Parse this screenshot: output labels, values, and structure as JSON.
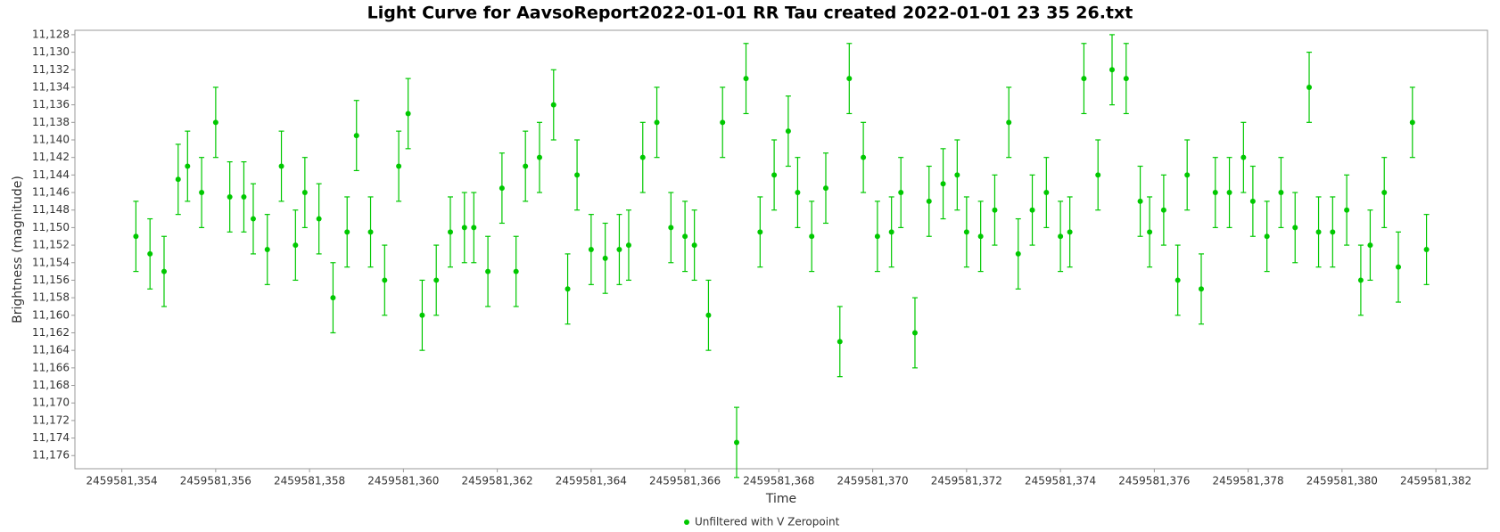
{
  "chart_data": {
    "type": "scatter",
    "title": "Light Curve for AavsoReport2022-01-01 RR Tau created 2022-01-01 23 35 26.txt",
    "x_label": "Time",
    "y_label": "Brightness (magnitude)",
    "y_inverted": true,
    "legend": "bottom",
    "xlim": [
      2459581.353,
      2459581.3831
    ],
    "ylim": [
      11.1275,
      11.1775
    ],
    "xticks": [
      {
        "value": 2459581.354,
        "label": "2459581,354"
      },
      {
        "value": 2459581.356,
        "label": "2459581,356"
      },
      {
        "value": 2459581.358,
        "label": "2459581,358"
      },
      {
        "value": 2459581.36,
        "label": "2459581,360"
      },
      {
        "value": 2459581.362,
        "label": "2459581,362"
      },
      {
        "value": 2459581.364,
        "label": "2459581,364"
      },
      {
        "value": 2459581.366,
        "label": "2459581,366"
      },
      {
        "value": 2459581.368,
        "label": "2459581,368"
      },
      {
        "value": 2459581.37,
        "label": "2459581,370"
      },
      {
        "value": 2459581.372,
        "label": "2459581,372"
      },
      {
        "value": 2459581.374,
        "label": "2459581,374"
      },
      {
        "value": 2459581.376,
        "label": "2459581,376"
      },
      {
        "value": 2459581.378,
        "label": "2459581,378"
      },
      {
        "value": 2459581.38,
        "label": "2459581,380"
      },
      {
        "value": 2459581.382,
        "label": "2459581,382"
      }
    ],
    "yticks": [
      {
        "value": 11.128,
        "label": "11,128"
      },
      {
        "value": 11.13,
        "label": "11,130"
      },
      {
        "value": 11.132,
        "label": "11,132"
      },
      {
        "value": 11.134,
        "label": "11,134"
      },
      {
        "value": 11.136,
        "label": "11,136"
      },
      {
        "value": 11.138,
        "label": "11,138"
      },
      {
        "value": 11.14,
        "label": "11,140"
      },
      {
        "value": 11.142,
        "label": "11,142"
      },
      {
        "value": 11.144,
        "label": "11,144"
      },
      {
        "value": 11.146,
        "label": "11,146"
      },
      {
        "value": 11.148,
        "label": "11,148"
      },
      {
        "value": 11.15,
        "label": "11,150"
      },
      {
        "value": 11.152,
        "label": "11,152"
      },
      {
        "value": 11.154,
        "label": "11,154"
      },
      {
        "value": 11.156,
        "label": "11,156"
      },
      {
        "value": 11.158,
        "label": "11,158"
      },
      {
        "value": 11.16,
        "label": "11,160"
      },
      {
        "value": 11.162,
        "label": "11,162"
      },
      {
        "value": 11.164,
        "label": "11,164"
      },
      {
        "value": 11.166,
        "label": "11,166"
      },
      {
        "value": 11.168,
        "label": "11,168"
      },
      {
        "value": 11.17,
        "label": "11,170"
      },
      {
        "value": 11.172,
        "label": "11,172"
      },
      {
        "value": 11.174,
        "label": "11,174"
      },
      {
        "value": 11.176,
        "label": "11,176"
      }
    ],
    "series": [
      {
        "name": "Unfiltered with V Zeropoint",
        "color": "#00c800",
        "x": [
          2459581.3543,
          2459581.3546,
          2459581.3549,
          2459581.3552,
          2459581.3554,
          2459581.3557,
          2459581.356,
          2459581.3563,
          2459581.3566,
          2459581.3568,
          2459581.3571,
          2459581.3574,
          2459581.3577,
          2459581.3579,
          2459581.3582,
          2459581.3585,
          2459581.3588,
          2459581.359,
          2459581.3593,
          2459581.3596,
          2459581.3599,
          2459581.3601,
          2459581.3604,
          2459581.3607,
          2459581.361,
          2459581.3613,
          2459581.3615,
          2459581.3618,
          2459581.3621,
          2459581.3624,
          2459581.3626,
          2459581.3629,
          2459581.3632,
          2459581.3635,
          2459581.3637,
          2459581.364,
          2459581.3643,
          2459581.3646,
          2459581.3648,
          2459581.3651,
          2459581.3654,
          2459581.3657,
          2459581.366,
          2459581.3662,
          2459581.3665,
          2459581.3668,
          2459581.3671,
          2459581.3673,
          2459581.3676,
          2459581.3679,
          2459581.3682,
          2459581.3684,
          2459581.3687,
          2459581.369,
          2459581.3693,
          2459581.3695,
          2459581.3698,
          2459581.3701,
          2459581.3704,
          2459581.3706,
          2459581.3709,
          2459581.3712,
          2459581.3715,
          2459581.3718,
          2459581.372,
          2459581.3723,
          2459581.3726,
          2459581.3729,
          2459581.3731,
          2459581.3734,
          2459581.3737,
          2459581.374,
          2459581.3742,
          2459581.3745,
          2459581.3748,
          2459581.3751,
          2459581.3754,
          2459581.3757,
          2459581.3759,
          2459581.3762,
          2459581.3765,
          2459581.3767,
          2459581.377,
          2459581.3773,
          2459581.3776,
          2459581.3779,
          2459581.3781,
          2459581.3784,
          2459581.3787,
          2459581.379,
          2459581.3793,
          2459581.3795,
          2459581.3798,
          2459581.3801,
          2459581.3804,
          2459581.3806,
          2459581.3809,
          2459581.3812,
          2459581.3815,
          2459581.3818
        ],
        "values": [
          11.151,
          11.153,
          11.155,
          11.1445,
          11.143,
          11.146,
          11.138,
          11.1465,
          11.1465,
          11.149,
          11.1525,
          11.143,
          11.152,
          11.146,
          11.149,
          11.158,
          11.1505,
          11.1395,
          11.1505,
          11.156,
          11.143,
          11.137,
          11.16,
          11.156,
          11.1505,
          11.15,
          11.15,
          11.155,
          11.1455,
          11.155,
          11.143,
          11.142,
          11.136,
          11.157,
          11.144,
          11.1525,
          11.1535,
          11.1525,
          11.152,
          11.142,
          11.138,
          11.15,
          11.151,
          11.152,
          11.16,
          11.138,
          11.1745,
          11.133,
          11.1505,
          11.144,
          11.139,
          11.146,
          11.151,
          11.1455,
          11.163,
          11.133,
          11.142,
          11.151,
          11.1505,
          11.146,
          11.162,
          11.147,
          11.145,
          11.144,
          11.1505,
          11.151,
          11.148,
          11.138,
          11.153,
          11.148,
          11.146,
          11.151,
          11.1505,
          11.133,
          11.144,
          11.132,
          11.133,
          11.147,
          11.1505,
          11.148,
          11.156,
          11.144,
          11.157,
          11.146,
          11.146,
          11.142,
          11.147,
          11.151,
          11.146,
          11.15,
          11.134,
          11.1505,
          11.1505,
          11.148,
          11.156,
          11.152,
          11.146,
          11.1545,
          11.138,
          11.1525
        ],
        "errors": [
          0.004,
          0.004,
          0.004,
          0.004,
          0.004,
          0.004,
          0.004,
          0.004,
          0.004,
          0.004,
          0.004,
          0.004,
          0.004,
          0.004,
          0.004,
          0.004,
          0.004,
          0.004,
          0.004,
          0.004,
          0.004,
          0.004,
          0.004,
          0.004,
          0.004,
          0.004,
          0.004,
          0.004,
          0.004,
          0.004,
          0.004,
          0.004,
          0.004,
          0.004,
          0.004,
          0.004,
          0.004,
          0.004,
          0.004,
          0.004,
          0.004,
          0.004,
          0.004,
          0.004,
          0.004,
          0.004,
          0.004,
          0.004,
          0.004,
          0.004,
          0.004,
          0.004,
          0.004,
          0.004,
          0.004,
          0.004,
          0.004,
          0.004,
          0.004,
          0.004,
          0.004,
          0.004,
          0.004,
          0.004,
          0.004,
          0.004,
          0.004,
          0.004,
          0.004,
          0.004,
          0.004,
          0.004,
          0.004,
          0.004,
          0.004,
          0.004,
          0.004,
          0.004,
          0.004,
          0.004,
          0.004,
          0.004,
          0.004,
          0.004,
          0.004,
          0.004,
          0.004,
          0.004,
          0.004,
          0.004,
          0.004,
          0.004,
          0.004,
          0.004,
          0.004,
          0.004,
          0.004,
          0.004,
          0.004,
          0.004
        ]
      }
    ]
  }
}
